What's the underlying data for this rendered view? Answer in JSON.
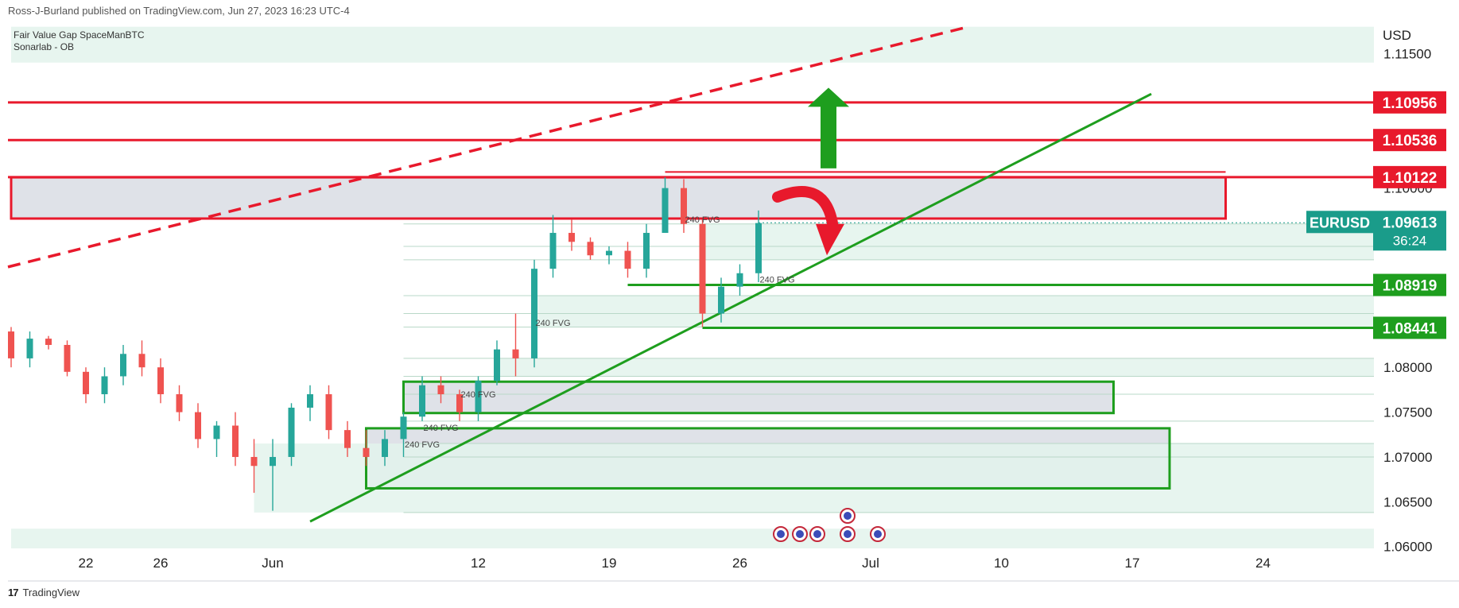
{
  "header": {
    "credit": "Ross-J-Burland published on TradingView.com, Jun 27, 2023 16:23 UTC-4"
  },
  "indicators": [
    "Fair Value Gap SpaceManBTC",
    "Sonarlab - OB"
  ],
  "footer": {
    "brand": "TradingView",
    "logo_icon": "tradingview-logo-icon"
  },
  "colors": {
    "resistance": "#e8192c",
    "support": "#1e9e1e",
    "fvg_fill": "#e3f3ec",
    "ob_fill": "#d9dde4",
    "candle_up": "#26a69a",
    "candle_down": "#ef5350",
    "eurusd_tag": "#1a9c8a"
  },
  "chart_data": {
    "type": "candlestick",
    "symbol": "EURUSD",
    "currency_label": "USD",
    "ylim": [
      1.0598,
      1.1185
    ],
    "x_ticks": [
      {
        "label": "22",
        "date": "2023-05-22"
      },
      {
        "label": "26",
        "date": "2023-05-26"
      },
      {
        "label": "Jun",
        "date": "2023-06-01"
      },
      {
        "label": "12",
        "date": "2023-06-12"
      },
      {
        "label": "19",
        "date": "2023-06-19"
      },
      {
        "label": "26",
        "date": "2023-06-26"
      },
      {
        "label": "Jul",
        "date": "2023-07-03"
      },
      {
        "label": "10",
        "date": "2023-07-10"
      },
      {
        "label": "17",
        "date": "2023-07-17"
      },
      {
        "label": "24",
        "date": "2023-07-24"
      }
    ],
    "y_ticks": [
      "1.11500",
      "1.10000",
      "1.08000",
      "1.07500",
      "1.07000",
      "1.06500",
      "1.06000"
    ],
    "price_badges": [
      {
        "text": "1.10956",
        "value": 1.10956,
        "kind": "resistance"
      },
      {
        "text": "1.10536",
        "value": 1.10536,
        "kind": "resistance"
      },
      {
        "text": "1.10122",
        "value": 1.10122,
        "kind": "resistance"
      },
      {
        "text": "1.08919",
        "value": 1.08919,
        "kind": "support"
      },
      {
        "text": "1.08441",
        "value": 1.08441,
        "kind": "support"
      }
    ],
    "current": {
      "symbol": "EURUSD",
      "price": "1.09613",
      "countdown": "36:24",
      "value": 1.09613
    },
    "fvg_labels": [
      {
        "text": "240 FVG",
        "date": "2023-06-24",
        "price": 1.0965
      },
      {
        "text": "240 FVG",
        "date": "2023-06-28",
        "price": 1.0898
      },
      {
        "text": "240 FVG",
        "date": "2023-06-16",
        "price": 1.085
      },
      {
        "text": "240 FVG",
        "date": "2023-06-12",
        "price": 1.077
      },
      {
        "text": "240 FVG",
        "date": "2023-06-10",
        "price": 1.0733
      },
      {
        "text": "240 FVG",
        "date": "2023-06-09",
        "price": 1.0714
      }
    ],
    "candles": [
      {
        "date": "2023-05-18",
        "o": 1.084,
        "h": 1.0845,
        "l": 1.08,
        "c": 1.081
      },
      {
        "date": "2023-05-19",
        "o": 1.081,
        "h": 1.084,
        "l": 1.08,
        "c": 1.0832
      },
      {
        "date": "2023-05-20",
        "o": 1.0832,
        "h": 1.0835,
        "l": 1.082,
        "c": 1.0825
      },
      {
        "date": "2023-05-21",
        "o": 1.0825,
        "h": 1.083,
        "l": 1.079,
        "c": 1.0795
      },
      {
        "date": "2023-05-22",
        "o": 1.0795,
        "h": 1.08,
        "l": 1.076,
        "c": 1.077
      },
      {
        "date": "2023-05-23",
        "o": 1.077,
        "h": 1.08,
        "l": 1.076,
        "c": 1.079
      },
      {
        "date": "2023-05-24",
        "o": 1.079,
        "h": 1.0825,
        "l": 1.078,
        "c": 1.0815
      },
      {
        "date": "2023-05-25",
        "o": 1.0815,
        "h": 1.083,
        "l": 1.079,
        "c": 1.08
      },
      {
        "date": "2023-05-26",
        "o": 1.08,
        "h": 1.081,
        "l": 1.076,
        "c": 1.077
      },
      {
        "date": "2023-05-27",
        "o": 1.077,
        "h": 1.078,
        "l": 1.074,
        "c": 1.075
      },
      {
        "date": "2023-05-28",
        "o": 1.075,
        "h": 1.076,
        "l": 1.071,
        "c": 1.072
      },
      {
        "date": "2023-05-29",
        "o": 1.072,
        "h": 1.074,
        "l": 1.07,
        "c": 1.0735
      },
      {
        "date": "2023-05-30",
        "o": 1.0735,
        "h": 1.075,
        "l": 1.069,
        "c": 1.07
      },
      {
        "date": "2023-05-31",
        "o": 1.07,
        "h": 1.072,
        "l": 1.066,
        "c": 1.069
      },
      {
        "date": "2023-06-01",
        "o": 1.069,
        "h": 1.072,
        "l": 1.064,
        "c": 1.07
      },
      {
        "date": "2023-06-02",
        "o": 1.07,
        "h": 1.076,
        "l": 1.069,
        "c": 1.0755
      },
      {
        "date": "2023-06-03",
        "o": 1.0755,
        "h": 1.078,
        "l": 1.074,
        "c": 1.077
      },
      {
        "date": "2023-06-04",
        "o": 1.077,
        "h": 1.078,
        "l": 1.072,
        "c": 1.073
      },
      {
        "date": "2023-06-05",
        "o": 1.073,
        "h": 1.074,
        "l": 1.07,
        "c": 1.071
      },
      {
        "date": "2023-06-06",
        "o": 1.071,
        "h": 1.073,
        "l": 1.069,
        "c": 1.07
      },
      {
        "date": "2023-06-07",
        "o": 1.07,
        "h": 1.073,
        "l": 1.069,
        "c": 1.072
      },
      {
        "date": "2023-06-08",
        "o": 1.072,
        "h": 1.075,
        "l": 1.07,
        "c": 1.0745
      },
      {
        "date": "2023-06-09",
        "o": 1.0745,
        "h": 1.079,
        "l": 1.074,
        "c": 1.078
      },
      {
        "date": "2023-06-10",
        "o": 1.078,
        "h": 1.079,
        "l": 1.076,
        "c": 1.077
      },
      {
        "date": "2023-06-11",
        "o": 1.077,
        "h": 1.0775,
        "l": 1.074,
        "c": 1.075
      },
      {
        "date": "2023-06-12",
        "o": 1.075,
        "h": 1.079,
        "l": 1.074,
        "c": 1.0785
      },
      {
        "date": "2023-06-13",
        "o": 1.0785,
        "h": 1.083,
        "l": 1.078,
        "c": 1.082
      },
      {
        "date": "2023-06-14",
        "o": 1.082,
        "h": 1.086,
        "l": 1.079,
        "c": 1.081
      },
      {
        "date": "2023-06-15",
        "o": 1.081,
        "h": 1.092,
        "l": 1.08,
        "c": 1.091
      },
      {
        "date": "2023-06-16",
        "o": 1.091,
        "h": 1.097,
        "l": 1.09,
        "c": 1.095
      },
      {
        "date": "2023-06-17",
        "o": 1.095,
        "h": 1.0965,
        "l": 1.093,
        "c": 1.094
      },
      {
        "date": "2023-06-18",
        "o": 1.094,
        "h": 1.0945,
        "l": 1.092,
        "c": 1.0925
      },
      {
        "date": "2023-06-19",
        "o": 1.0925,
        "h": 1.0935,
        "l": 1.0915,
        "c": 1.093
      },
      {
        "date": "2023-06-20",
        "o": 1.093,
        "h": 1.094,
        "l": 1.09,
        "c": 1.091
      },
      {
        "date": "2023-06-21",
        "o": 1.091,
        "h": 1.096,
        "l": 1.09,
        "c": 1.095
      },
      {
        "date": "2023-06-22",
        "o": 1.095,
        "h": 1.1012,
        "l": 1.095,
        "c": 1.1
      },
      {
        "date": "2023-06-23",
        "o": 1.1,
        "h": 1.101,
        "l": 1.095,
        "c": 1.096
      },
      {
        "date": "2023-06-24",
        "o": 1.096,
        "h": 1.0965,
        "l": 1.0845,
        "c": 1.086
      },
      {
        "date": "2023-06-25",
        "o": 1.086,
        "h": 1.09,
        "l": 1.085,
        "c": 1.089
      },
      {
        "date": "2023-06-26",
        "o": 1.089,
        "h": 1.0915,
        "l": 1.088,
        "c": 1.0905
      },
      {
        "date": "2023-06-27",
        "o": 1.0905,
        "h": 1.0975,
        "l": 1.0895,
        "c": 1.0961
      }
    ]
  }
}
